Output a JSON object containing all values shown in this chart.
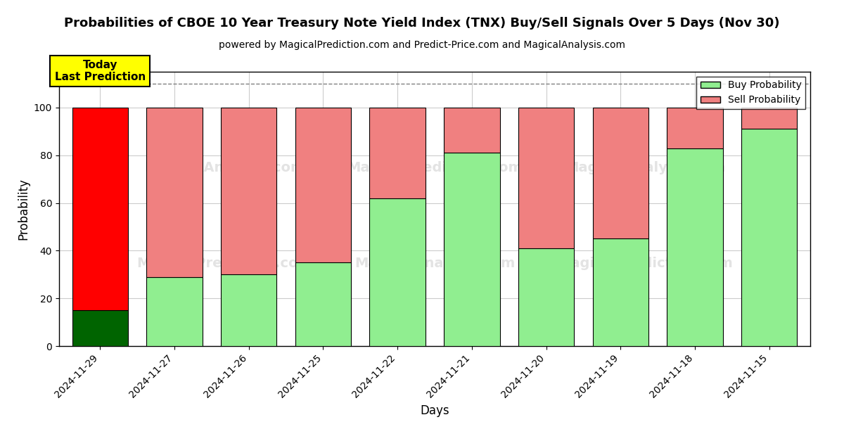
{
  "title": "Probabilities of CBOE 10 Year Treasury Note Yield Index (TNX) Buy/Sell Signals Over 5 Days (Nov 30)",
  "subtitle": "powered by MagicalPrediction.com and Predict-Price.com and MagicalAnalysis.com",
  "xlabel": "Days",
  "ylabel": "Probability",
  "categories": [
    "2024-11-29",
    "2024-11-27",
    "2024-11-26",
    "2024-11-25",
    "2024-11-22",
    "2024-11-21",
    "2024-11-20",
    "2024-11-19",
    "2024-11-18",
    "2024-11-15"
  ],
  "buy_values": [
    15,
    29,
    30,
    35,
    62,
    81,
    41,
    45,
    83,
    91
  ],
  "sell_values": [
    85,
    71,
    70,
    65,
    38,
    19,
    59,
    55,
    17,
    9
  ],
  "today_bar_buy_color": "#006400",
  "today_bar_sell_color": "#FF0000",
  "regular_buy_color": "#90EE90",
  "regular_sell_color": "#F08080",
  "today_box_color": "#FFFF00",
  "today_box_text": "Today\nLast Prediction",
  "ylim": [
    0,
    115
  ],
  "dashed_line_y": 110,
  "background_color": "#ffffff",
  "grid_color": "#cccccc"
}
